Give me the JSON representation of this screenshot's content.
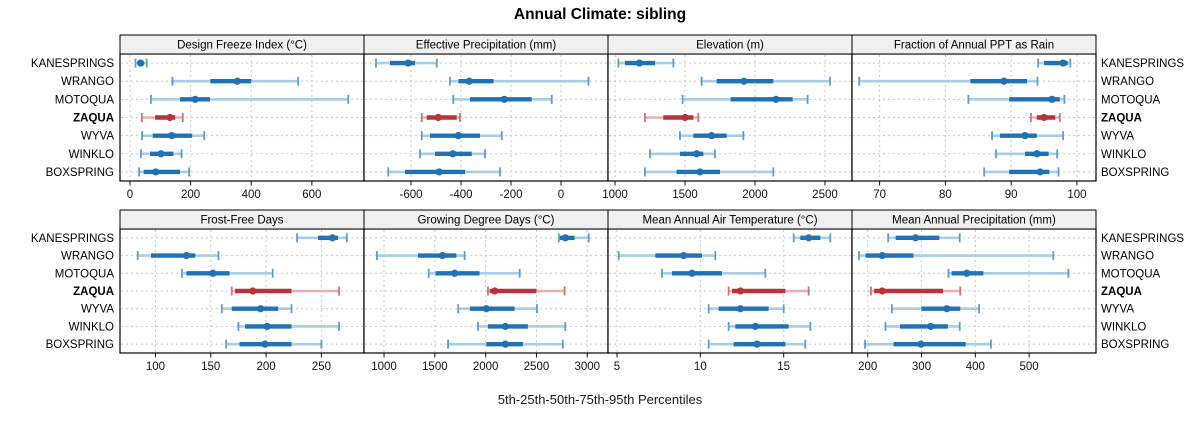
{
  "chart_data": {
    "type": "percentile-whisker-trellis",
    "title": "Annual Climate: sibling",
    "caption": "5th-25th-50th-75th-95th Percentiles",
    "percentile_labels": [
      "5th",
      "25th",
      "50th",
      "75th",
      "95th"
    ],
    "stations": [
      "KANESPRINGS",
      "WRANGO",
      "MOTOQUA",
      "ZAQUA",
      "WYVA",
      "WINKLO",
      "BOXSPRING"
    ],
    "highlight_station": "ZAQUA",
    "legend_position": "none",
    "grid": true,
    "style": {
      "blue_dark": "#2171b5",
      "blue_light": "#a8cee3",
      "blue_cap": "#5b9fd0",
      "red_dark": "#b6353a",
      "red_light": "#e7b0b2",
      "red_cap": "#cf7276",
      "grid_color": "#c9c9c9",
      "strip_bg": "#f0f0f0",
      "border": "#000000",
      "tick_label_color": "#111111"
    },
    "panels": [
      {
        "title": "Design Freeze Index (°C)",
        "xlim": [
          -33,
          772
        ],
        "ticks": [
          0,
          200,
          400,
          600
        ],
        "rows": [
          {
            "station": "KANESPRINGS",
            "p": [
              18,
              25,
              35,
              45,
              55
            ]
          },
          {
            "station": "WRANGO",
            "p": [
              140,
              265,
              354,
              400,
              555
            ]
          },
          {
            "station": "MOTOQUA",
            "p": [
              69,
              165,
              215,
              264,
              720
            ]
          },
          {
            "station": "ZAQUA",
            "p": [
              39,
              83,
              132,
              149,
              174
            ]
          },
          {
            "station": "WYVA",
            "p": [
              40,
              75,
              138,
              205,
              245
            ]
          },
          {
            "station": "WINKLO",
            "p": [
              36,
              66,
              102,
              143,
              170
            ]
          },
          {
            "station": "BOXSPRING",
            "p": [
              30,
              45,
              85,
              165,
              195
            ]
          }
        ]
      },
      {
        "title": "Effective Precipitation (mm)",
        "xlim": [
          -788,
          188
        ],
        "ticks": [
          -600,
          -400,
          -200,
          0
        ],
        "rows": [
          {
            "station": "KANESPRINGS",
            "p": [
              -740,
              -684,
              -612,
              -584,
              -497
            ]
          },
          {
            "station": "WRANGO",
            "p": [
              -444,
              -410,
              -367,
              -270,
              110
            ]
          },
          {
            "station": "MOTOQUA",
            "p": [
              -431,
              -364,
              -227,
              -117,
              -37
            ]
          },
          {
            "station": "ZAQUA",
            "p": [
              -557,
              -537,
              -491,
              -417,
              -404
            ]
          },
          {
            "station": "WYVA",
            "p": [
              -557,
              -524,
              -411,
              -324,
              -237
            ]
          },
          {
            "station": "WINKLO",
            "p": [
              -564,
              -504,
              -433,
              -357,
              -304
            ]
          },
          {
            "station": "BOXSPRING",
            "p": [
              -691,
              -624,
              -487,
              -384,
              -244
            ]
          }
        ]
      },
      {
        "title": "Elevation (m)",
        "xlim": [
          950,
          2693
        ],
        "ticks": [
          1000,
          1500,
          2000,
          2500
        ],
        "rows": [
          {
            "station": "KANESPRINGS",
            "p": [
              1024,
              1071,
              1174,
              1286,
              1417
            ]
          },
          {
            "station": "WRANGO",
            "p": [
              1619,
              1726,
              1921,
              2131,
              2536
            ]
          },
          {
            "station": "MOTOQUA",
            "p": [
              1483,
              1826,
              2150,
              2269,
              2376
            ]
          },
          {
            "station": "ZAQUA",
            "p": [
              1214,
              1345,
              1500,
              1560,
              1595
            ]
          },
          {
            "station": "WYVA",
            "p": [
              1464,
              1560,
              1690,
              1798,
              1917
            ]
          },
          {
            "station": "WINKLO",
            "p": [
              1250,
              1464,
              1583,
              1631,
              1714
            ]
          },
          {
            "station": "BOXSPRING",
            "p": [
              1214,
              1440,
              1607,
              1750,
              2131
            ]
          }
        ]
      },
      {
        "title": "Fraction of Annual PPT as Rain",
        "xlim": [
          65.8,
          102.9
        ],
        "ticks": [
          70,
          80,
          90,
          100
        ],
        "rows": [
          {
            "station": "KANESPRINGS",
            "p": [
              94.1,
              95.0,
              97.9,
              98.6,
              99.0
            ]
          },
          {
            "station": "WRANGO",
            "p": [
              66.9,
              83.8,
              88.9,
              92.4,
              94.0
            ]
          },
          {
            "station": "MOTOQUA",
            "p": [
              83.5,
              89.7,
              96.2,
              97.4,
              98.1
            ]
          },
          {
            "station": "ZAQUA",
            "p": [
              93.0,
              93.9,
              95.0,
              96.7,
              97.4
            ]
          },
          {
            "station": "WYVA",
            "p": [
              87.1,
              88.3,
              92.1,
              93.9,
              97.9
            ]
          },
          {
            "station": "WINKLO",
            "p": [
              87.7,
              92.1,
              93.9,
              95.7,
              97.0
            ]
          },
          {
            "station": "BOXSPRING",
            "p": [
              85.9,
              89.7,
              94.4,
              95.8,
              97.2
            ]
          }
        ]
      },
      {
        "title": "Frost-Free Days",
        "xlim": [
          68,
          288.5
        ],
        "ticks": [
          100,
          150,
          200,
          250
        ],
        "rows": [
          {
            "station": "KANESPRINGS",
            "p": [
              228,
              247,
              260,
              265,
              273
            ]
          },
          {
            "station": "WRANGO",
            "p": [
              84,
              96,
              128,
              136,
              157
            ]
          },
          {
            "station": "MOTOQUA",
            "p": [
              124,
              128,
              152,
              167,
              206
            ]
          },
          {
            "station": "ZAQUA",
            "p": [
              169,
              172,
              188,
              223,
              266
            ]
          },
          {
            "station": "WYVA",
            "p": [
              160,
              169,
              195,
              211,
              223
            ]
          },
          {
            "station": "WINKLO",
            "p": [
              175,
              181,
              201,
              223,
              266
            ]
          },
          {
            "station": "BOXSPRING",
            "p": [
              164,
              176,
              199,
              223,
              250
            ]
          }
        ]
      },
      {
        "title": "Growing Degree Days (°C)",
        "xlim": [
          803,
          3204
        ],
        "ticks": [
          1000,
          1500,
          2000,
          2500,
          3000
        ],
        "rows": [
          {
            "station": "KANESPRINGS",
            "p": [
              2720,
              2730,
              2785,
              2875,
              3015
            ]
          },
          {
            "station": "WRANGO",
            "p": [
              930,
              1334,
              1574,
              1712,
              1793
            ]
          },
          {
            "station": "MOTOQUA",
            "p": [
              1440,
              1508,
              1695,
              1940,
              2335
            ]
          },
          {
            "station": "ZAQUA",
            "p": [
              2023,
              2040,
              2090,
              2500,
              2777
            ]
          },
          {
            "station": "WYVA",
            "p": [
              1730,
              1845,
              2007,
              2285,
              2505
            ]
          },
          {
            "station": "WINKLO",
            "p": [
              1925,
              2023,
              2194,
              2416,
              2784
            ]
          },
          {
            "station": "BOXSPRING",
            "p": [
              1630,
              2007,
              2194,
              2367,
              2760
            ]
          }
        ]
      },
      {
        "title": "Mean Annual Air Temperature (°C)",
        "xlim": [
          4.46,
          19.1
        ],
        "ticks": [
          5,
          10,
          15
        ],
        "rows": [
          {
            "station": "KANESPRINGS",
            "p": [
              15.6,
              16.0,
              16.5,
              17.2,
              17.8
            ]
          },
          {
            "station": "WRANGO",
            "p": [
              5.1,
              7.3,
              9.0,
              10.1,
              10.9
            ]
          },
          {
            "station": "MOTOQUA",
            "p": [
              7.7,
              8.3,
              9.5,
              11.3,
              13.9
            ]
          },
          {
            "station": "ZAQUA",
            "p": [
              11.7,
              11.9,
              12.4,
              15.1,
              16.5
            ]
          },
          {
            "station": "WYVA",
            "p": [
              10.5,
              11.1,
              12.4,
              14.1,
              15.0
            ]
          },
          {
            "station": "WINKLO",
            "p": [
              11.7,
              12.1,
              13.3,
              15.3,
              16.6
            ]
          },
          {
            "station": "BOXSPRING",
            "p": [
              10.5,
              12.0,
              13.4,
              15.1,
              16.3
            ]
          }
        ]
      },
      {
        "title": "Mean Annual Precipitation (mm)",
        "xlim": [
          170.8,
          624.3
        ],
        "ticks": [
          200,
          300,
          400,
          500
        ],
        "rows": [
          {
            "station": "KANESPRINGS",
            "p": [
              238,
              252,
              289,
              333,
              371
            ]
          },
          {
            "station": "WRANGO",
            "p": [
              184,
              196,
              227,
              285,
              545
            ]
          },
          {
            "station": "MOTOQUA",
            "p": [
              350,
              356,
              384,
              415,
              573
            ]
          },
          {
            "station": "ZAQUA",
            "p": [
              206,
              212,
              227,
              340,
              372
            ]
          },
          {
            "station": "WYVA",
            "p": [
              245,
              300,
              347,
              372,
              407
            ]
          },
          {
            "station": "WINKLO",
            "p": [
              233,
              260,
              317,
              349,
              371
            ]
          },
          {
            "station": "BOXSPRING",
            "p": [
              195,
              248,
              299,
              382,
              429
            ]
          }
        ]
      }
    ]
  }
}
